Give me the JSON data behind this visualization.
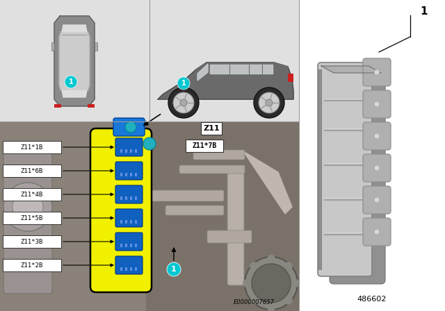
{
  "bg_color": "#ffffff",
  "light_gray_panel": "#e0e0e0",
  "engine_bg": "#8a8070",
  "engine_dark": "#6a6058",
  "engine_metal": "#b0a898",
  "engine_pipe": "#c8c0b8",
  "teal_color": "#00c8d2",
  "yellow_ism": "#f0f000",
  "blue_conn": "#1060c0",
  "blue_conn2": "#2878d0",
  "black": "#000000",
  "white": "#ffffff",
  "dark_car": "#6a6a6a",
  "medium_car": "#8a8a8a",
  "light_car": "#aaaaaa",
  "very_light_car": "#cccccc",
  "red_light": "#cc2020",
  "part_gray_dark": "#909090",
  "part_gray_mid": "#b0b0b0",
  "part_gray_light": "#c8c8c8",
  "part_gray_very_light": "#d8d8d8",
  "part_number": "486602",
  "diagram_code": "E0000007657",
  "labels": [
    "Z11*1B",
    "Z11*6B",
    "Z11*4B",
    "Z11*5B",
    "Z11*3B",
    "Z11*2B"
  ],
  "z11_label": "Z11",
  "z11_7b_label": "Z11*7B",
  "item_number": "1",
  "panel_border": "#999999",
  "text_box_bg": "#ffffff",
  "text_box_border": "#333333"
}
